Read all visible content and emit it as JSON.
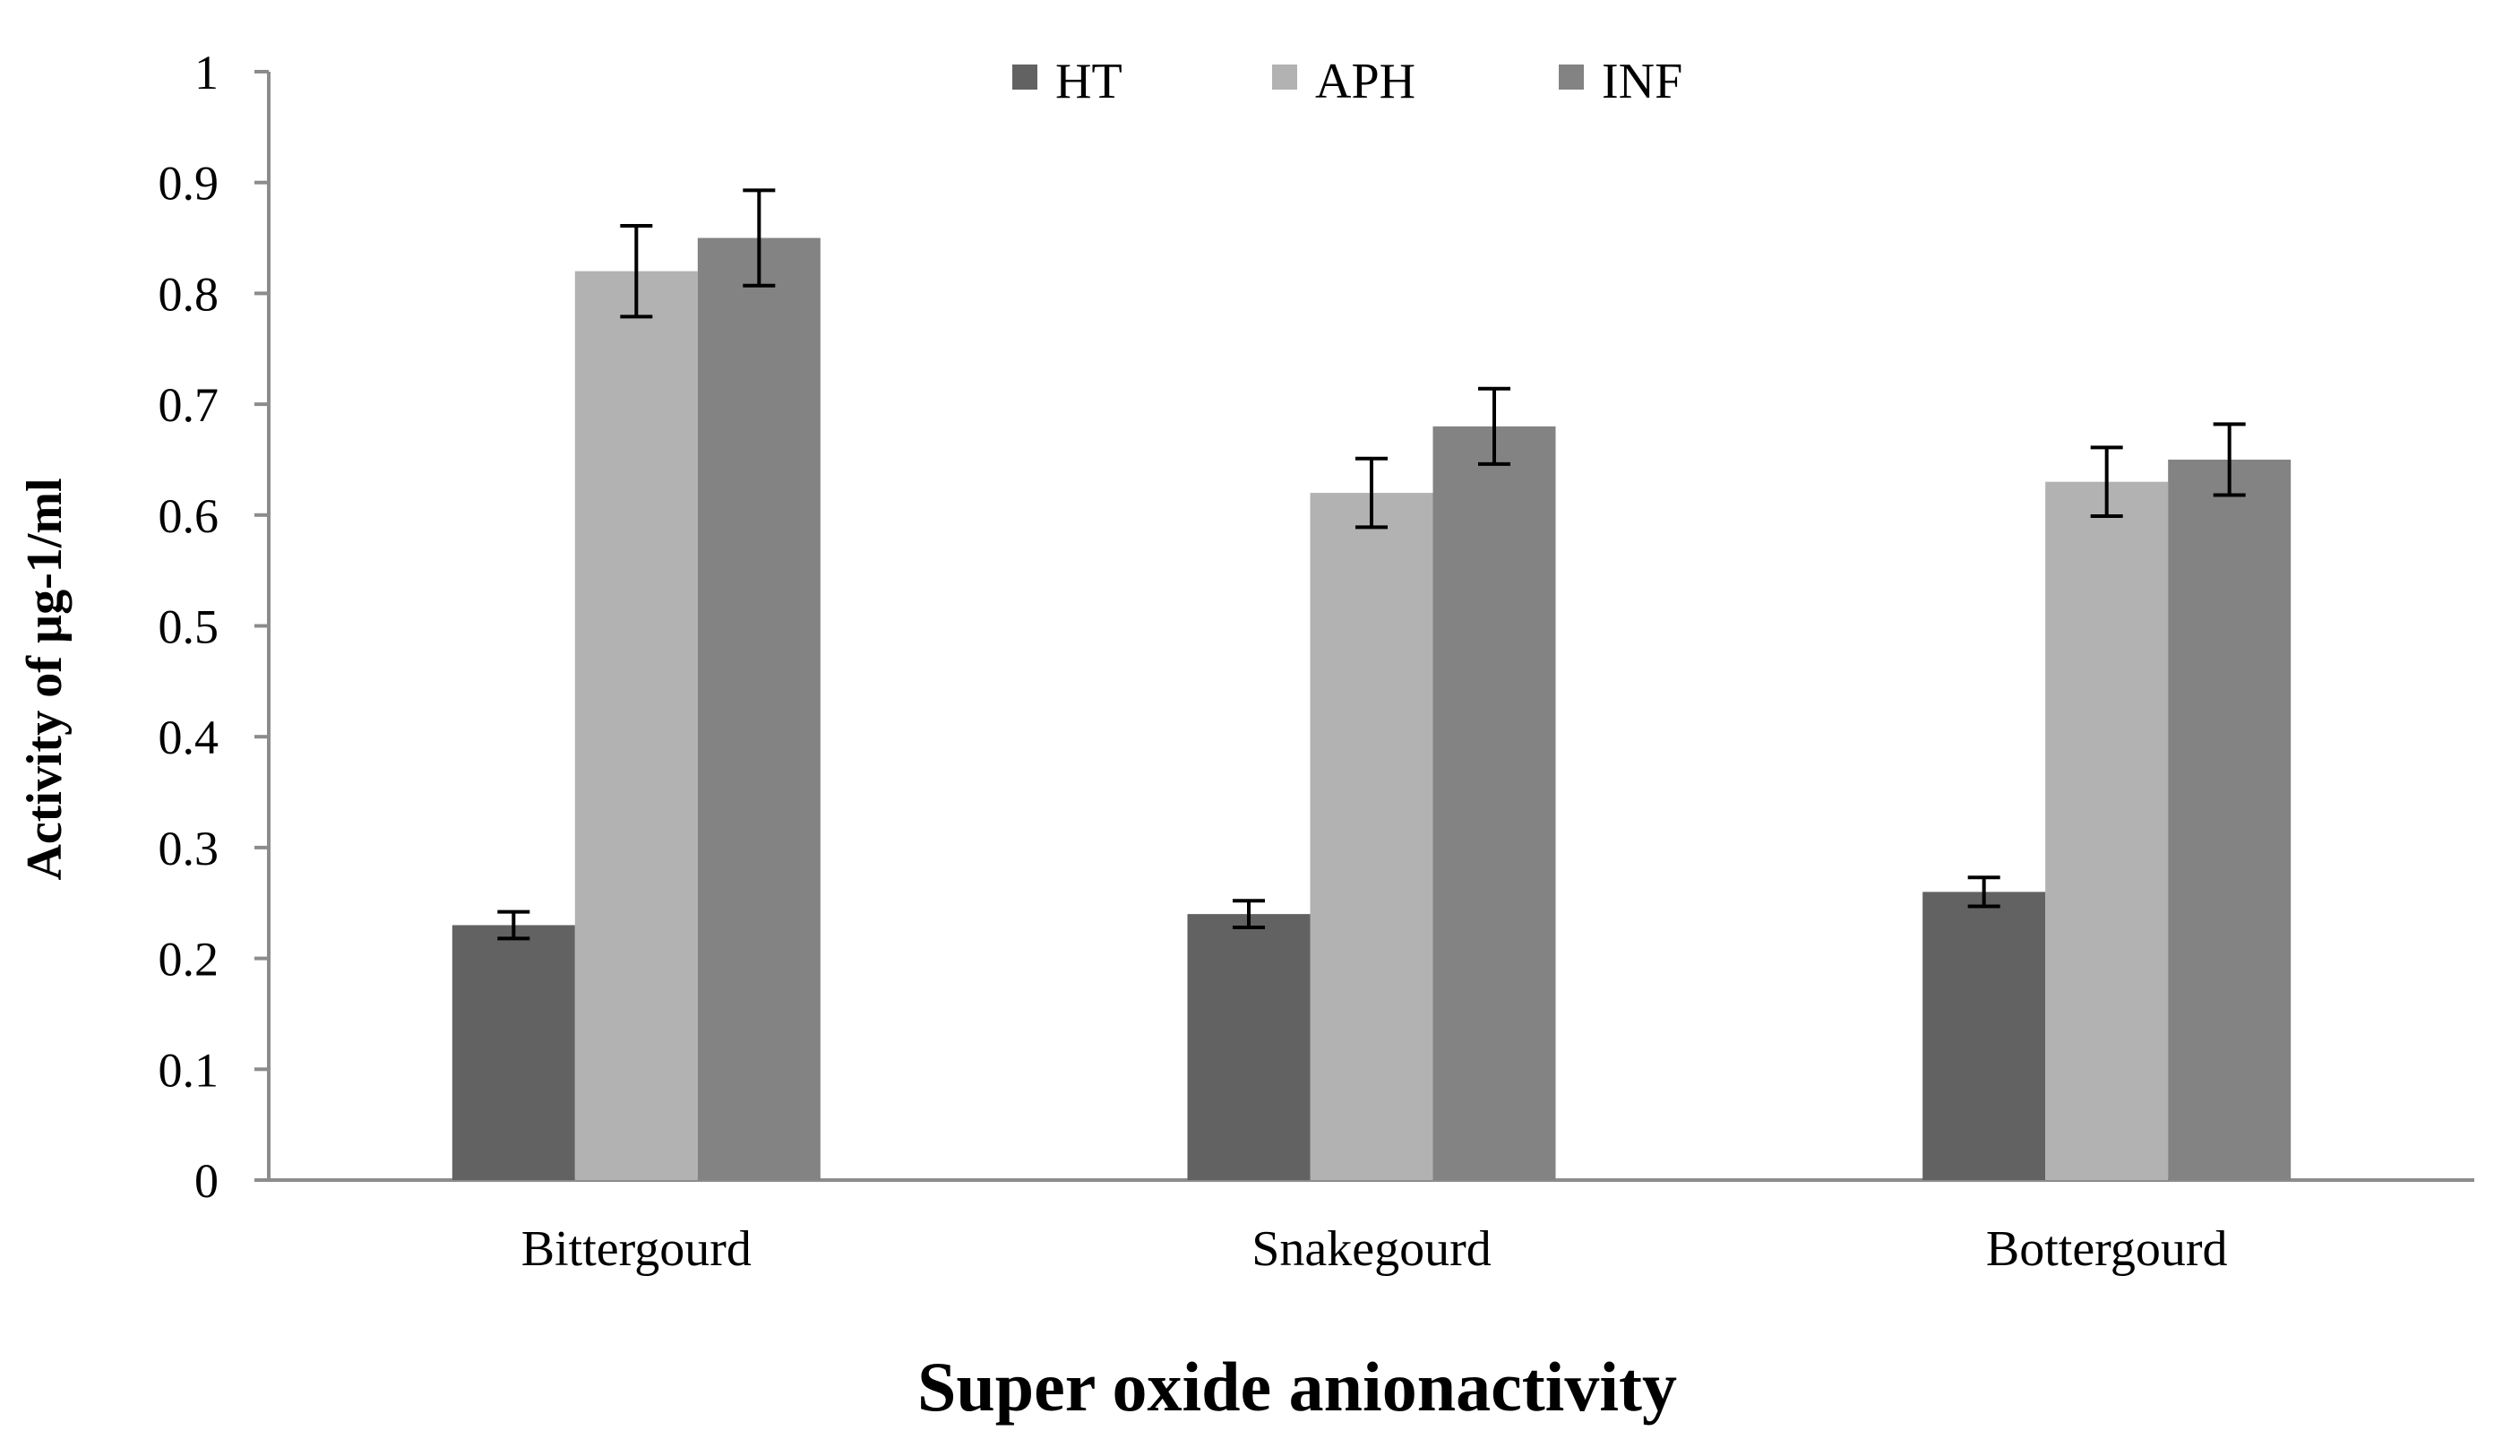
{
  "chart_data": {
    "type": "bar",
    "title": "",
    "xlabel": "Super oxide anionactivity",
    "ylabel": "Activity of µg-1/ml",
    "categories": [
      "Bittergourd",
      "Snakegourd",
      "Bottergourd"
    ],
    "series": [
      {
        "name": "HT",
        "color": "#626262",
        "values": [
          0.23,
          0.24,
          0.26
        ],
        "errors": [
          0.012,
          0.012,
          0.013
        ]
      },
      {
        "name": "APH",
        "color": "#b2b2b2",
        "values": [
          0.82,
          0.62,
          0.63
        ],
        "errors": [
          0.041,
          0.031,
          0.031
        ]
      },
      {
        "name": "INF",
        "color": "#838383",
        "values": [
          0.85,
          0.68,
          0.65
        ],
        "errors": [
          0.043,
          0.034,
          0.032
        ]
      }
    ],
    "ylim": [
      0,
      1
    ],
    "yticks": [
      "0",
      "0.1",
      "0.2",
      "0.3",
      "0.4",
      "0.5",
      "0.6",
      "0.7",
      "0.8",
      "0.9",
      "1"
    ],
    "legend_position": "top-center",
    "grid": false
  }
}
